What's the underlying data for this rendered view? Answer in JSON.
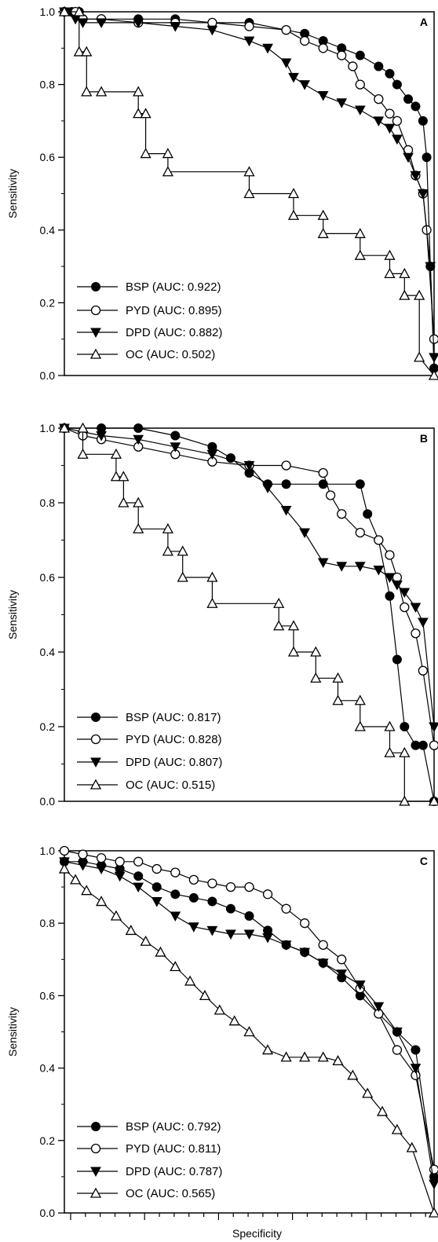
{
  "chart_data": [
    {
      "type": "line",
      "panel": "A",
      "xlabel": "",
      "ylabel": "Sensitivity",
      "ylim": [
        0,
        1
      ],
      "yticks": [
        "0.0",
        "0.2",
        "0.4",
        "0.6",
        "0.8",
        "1.0"
      ],
      "legend_position": "bottom-left",
      "series": [
        {
          "name": "BSP (AUC: 0.922)",
          "marker": "filled-circle",
          "x": [
            0,
            0.02,
            0.04,
            0.05,
            0.1,
            0.2,
            0.3,
            0.4,
            0.5,
            0.6,
            0.65,
            0.7,
            0.75,
            0.8,
            0.85,
            0.88,
            0.9,
            0.93,
            0.95,
            0.97,
            0.98,
            0.99,
            1.0
          ],
          "y": [
            1.0,
            1.0,
            1.0,
            0.98,
            0.98,
            0.98,
            0.98,
            0.97,
            0.97,
            0.95,
            0.94,
            0.92,
            0.9,
            0.88,
            0.85,
            0.83,
            0.8,
            0.76,
            0.74,
            0.7,
            0.6,
            0.3,
            0.02
          ]
        },
        {
          "name": "PYD (AUC: 0.895)",
          "marker": "open-circle",
          "x": [
            0,
            0.03,
            0.05,
            0.1,
            0.2,
            0.3,
            0.4,
            0.5,
            0.6,
            0.65,
            0.7,
            0.75,
            0.78,
            0.8,
            0.85,
            0.88,
            0.9,
            0.93,
            0.95,
            0.97,
            0.98,
            1.0
          ],
          "y": [
            1.0,
            1.0,
            0.98,
            0.98,
            0.97,
            0.97,
            0.97,
            0.96,
            0.95,
            0.92,
            0.9,
            0.88,
            0.85,
            0.8,
            0.76,
            0.72,
            0.7,
            0.62,
            0.55,
            0.5,
            0.4,
            0.1
          ]
        },
        {
          "name": "DPD (AUC: 0.882)",
          "marker": "filled-down-triangle",
          "x": [
            0,
            0.03,
            0.05,
            0.1,
            0.2,
            0.3,
            0.4,
            0.5,
            0.55,
            0.6,
            0.62,
            0.65,
            0.7,
            0.75,
            0.8,
            0.85,
            0.88,
            0.9,
            0.93,
            0.95,
            0.97,
            0.99,
            1.0
          ],
          "y": [
            1.0,
            0.98,
            0.97,
            0.97,
            0.97,
            0.96,
            0.95,
            0.92,
            0.9,
            0.86,
            0.82,
            0.8,
            0.77,
            0.75,
            0.73,
            0.7,
            0.68,
            0.65,
            0.6,
            0.55,
            0.5,
            0.3,
            0.05
          ]
        },
        {
          "name": "OC (AUC: 0.502)",
          "marker": "open-triangle",
          "x": [
            0,
            0.04,
            0.04,
            0.06,
            0.06,
            0.1,
            0.2,
            0.2,
            0.22,
            0.22,
            0.28,
            0.28,
            0.5,
            0.5,
            0.62,
            0.62,
            0.7,
            0.7,
            0.8,
            0.8,
            0.88,
            0.88,
            0.92,
            0.92,
            0.96,
            0.96,
            1.0
          ],
          "y": [
            1.0,
            1.0,
            0.89,
            0.89,
            0.78,
            0.78,
            0.78,
            0.72,
            0.72,
            0.61,
            0.61,
            0.56,
            0.56,
            0.5,
            0.5,
            0.44,
            0.44,
            0.39,
            0.39,
            0.33,
            0.33,
            0.28,
            0.28,
            0.22,
            0.22,
            0.05,
            0.0
          ]
        }
      ]
    },
    {
      "type": "line",
      "panel": "B",
      "xlabel": "",
      "ylabel": "Sensitivity",
      "ylim": [
        0,
        1
      ],
      "yticks": [
        "0.0",
        "0.2",
        "0.4",
        "0.6",
        "0.8",
        "1.0"
      ],
      "legend_position": "bottom-left",
      "series": [
        {
          "name": "BSP (AUC: 0.817)",
          "marker": "filled-circle",
          "x": [
            0,
            0.1,
            0.2,
            0.3,
            0.4,
            0.45,
            0.5,
            0.55,
            0.6,
            0.7,
            0.8,
            0.82,
            0.85,
            0.88,
            0.9,
            0.92,
            0.95,
            0.97,
            1.0
          ],
          "y": [
            1.0,
            1.0,
            1.0,
            0.98,
            0.95,
            0.92,
            0.88,
            0.85,
            0.85,
            0.85,
            0.85,
            0.77,
            0.7,
            0.55,
            0.38,
            0.2,
            0.15,
            0.15,
            0.0
          ]
        },
        {
          "name": "PYD (AUC: 0.828)",
          "marker": "open-circle",
          "x": [
            0,
            0.05,
            0.1,
            0.2,
            0.3,
            0.4,
            0.5,
            0.6,
            0.7,
            0.72,
            0.75,
            0.8,
            0.85,
            0.88,
            0.9,
            0.92,
            0.95,
            0.97,
            1.0
          ],
          "y": [
            1.0,
            0.98,
            0.97,
            0.95,
            0.93,
            0.91,
            0.9,
            0.9,
            0.88,
            0.82,
            0.77,
            0.72,
            0.7,
            0.66,
            0.6,
            0.52,
            0.45,
            0.35,
            0.15
          ]
        },
        {
          "name": "DPD (AUC: 0.807)",
          "marker": "filled-down-triangle",
          "x": [
            0,
            0.1,
            0.2,
            0.3,
            0.4,
            0.5,
            0.55,
            0.6,
            0.65,
            0.7,
            0.75,
            0.8,
            0.85,
            0.88,
            0.9,
            0.92,
            0.95,
            0.97,
            1.0
          ],
          "y": [
            1.0,
            0.98,
            0.97,
            0.95,
            0.93,
            0.9,
            0.84,
            0.78,
            0.72,
            0.64,
            0.63,
            0.63,
            0.62,
            0.6,
            0.58,
            0.56,
            0.52,
            0.48,
            0.2
          ]
        },
        {
          "name": "OC (AUC: 0.515)",
          "marker": "open-triangle",
          "x": [
            0,
            0.05,
            0.05,
            0.14,
            0.14,
            0.16,
            0.16,
            0.2,
            0.2,
            0.28,
            0.28,
            0.32,
            0.32,
            0.4,
            0.4,
            0.58,
            0.58,
            0.62,
            0.62,
            0.68,
            0.68,
            0.74,
            0.74,
            0.8,
            0.8,
            0.88,
            0.88,
            0.92,
            0.92,
            1.0
          ],
          "y": [
            1.0,
            1.0,
            0.93,
            0.93,
            0.87,
            0.87,
            0.8,
            0.8,
            0.73,
            0.73,
            0.67,
            0.67,
            0.6,
            0.6,
            0.53,
            0.53,
            0.47,
            0.47,
            0.4,
            0.4,
            0.33,
            0.33,
            0.27,
            0.27,
            0.2,
            0.2,
            0.13,
            0.13,
            0.0,
            0.0
          ]
        }
      ]
    },
    {
      "type": "line",
      "panel": "C",
      "xlabel": "Specificity",
      "ylabel": "Sensitivity",
      "ylim": [
        0,
        1
      ],
      "yticks": [
        "0.0",
        "0.2",
        "0.4",
        "0.6",
        "0.8",
        "1.0"
      ],
      "legend_position": "bottom-left",
      "series": [
        {
          "name": "BSP (AUC: 0.792)",
          "marker": "filled-circle",
          "x": [
            0,
            0.05,
            0.1,
            0.15,
            0.2,
            0.25,
            0.3,
            0.35,
            0.4,
            0.45,
            0.5,
            0.55,
            0.6,
            0.65,
            0.7,
            0.75,
            0.8,
            0.85,
            0.9,
            0.95,
            1.0
          ],
          "y": [
            0.97,
            0.97,
            0.96,
            0.95,
            0.93,
            0.9,
            0.88,
            0.87,
            0.86,
            0.84,
            0.82,
            0.78,
            0.74,
            0.72,
            0.69,
            0.65,
            0.6,
            0.55,
            0.5,
            0.45,
            0.1
          ]
        },
        {
          "name": "PYD (AUC: 0.811)",
          "marker": "open-circle",
          "x": [
            0,
            0.05,
            0.1,
            0.15,
            0.2,
            0.25,
            0.3,
            0.35,
            0.4,
            0.45,
            0.5,
            0.55,
            0.6,
            0.65,
            0.7,
            0.75,
            0.8,
            0.85,
            0.9,
            0.95,
            1.0
          ],
          "y": [
            1.0,
            0.99,
            0.98,
            0.97,
            0.97,
            0.95,
            0.94,
            0.92,
            0.91,
            0.9,
            0.9,
            0.88,
            0.84,
            0.8,
            0.74,
            0.7,
            0.62,
            0.55,
            0.45,
            0.38,
            0.12
          ]
        },
        {
          "name": "DPD (AUC: 0.787)",
          "marker": "filled-down-triangle",
          "x": [
            0,
            0.05,
            0.1,
            0.15,
            0.2,
            0.25,
            0.3,
            0.35,
            0.4,
            0.45,
            0.5,
            0.55,
            0.6,
            0.65,
            0.7,
            0.75,
            0.8,
            0.85,
            0.9,
            0.95,
            1.0
          ],
          "y": [
            0.97,
            0.96,
            0.95,
            0.93,
            0.9,
            0.86,
            0.82,
            0.79,
            0.78,
            0.77,
            0.77,
            0.76,
            0.74,
            0.72,
            0.69,
            0.66,
            0.63,
            0.57,
            0.5,
            0.4,
            0.08
          ]
        },
        {
          "name": "OC (AUC: 0.565)",
          "marker": "open-triangle",
          "x": [
            0,
            0.03,
            0.06,
            0.1,
            0.14,
            0.18,
            0.22,
            0.26,
            0.3,
            0.34,
            0.38,
            0.42,
            0.46,
            0.5,
            0.55,
            0.6,
            0.65,
            0.7,
            0.74,
            0.78,
            0.82,
            0.86,
            0.9,
            0.94,
            1.0
          ],
          "y": [
            0.95,
            0.92,
            0.89,
            0.86,
            0.82,
            0.78,
            0.75,
            0.72,
            0.68,
            0.64,
            0.6,
            0.56,
            0.53,
            0.5,
            0.45,
            0.43,
            0.43,
            0.43,
            0.42,
            0.38,
            0.33,
            0.28,
            0.23,
            0.18,
            0.0
          ]
        }
      ]
    }
  ]
}
